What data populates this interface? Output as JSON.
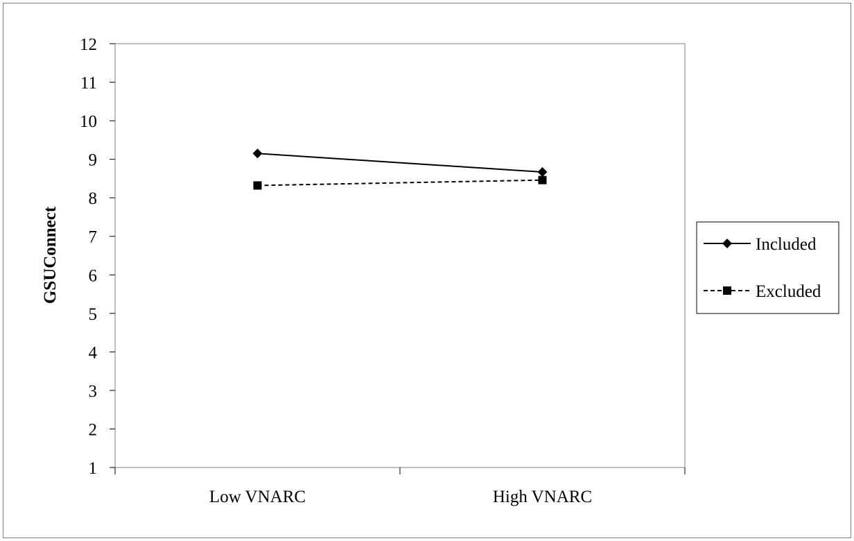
{
  "chart_data": {
    "type": "line",
    "categories": [
      "Low VNARC",
      "High VNARC"
    ],
    "series": [
      {
        "name": "Included",
        "values": [
          9.15,
          8.67
        ],
        "line_style": "solid",
        "marker": "diamond"
      },
      {
        "name": "Excluded",
        "values": [
          8.32,
          8.46
        ],
        "line_style": "dashed",
        "marker": "square"
      }
    ],
    "xlabel": "",
    "ylabel": "GSUConnect",
    "ylim": [
      1,
      12
    ],
    "yticks": [
      1,
      2,
      3,
      4,
      5,
      6,
      7,
      8,
      9,
      10,
      11,
      12
    ],
    "grid": false,
    "legend_position": "right",
    "colors": {
      "line": "#000000",
      "plot_border": "#7f7f7f",
      "background": "#ffffff"
    }
  }
}
